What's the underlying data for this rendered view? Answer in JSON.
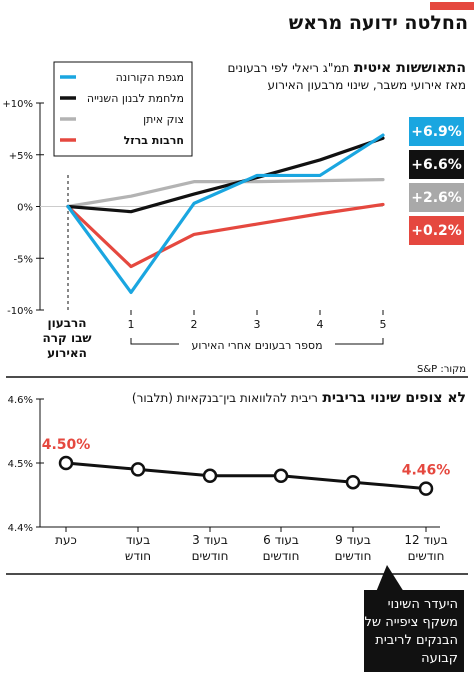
{
  "headline": "החלטה ידועה מראש",
  "source": "מקור: S&P",
  "callout": "היעדר השינוי משקף ציפייה של הבנקים לריבית קבועה",
  "chart_data": [
    {
      "type": "line",
      "title": "התאוששות איטית",
      "title_suffix": "תמ\"ג ריאלי לפי רבעונים",
      "subtitle": "מאז אירועי משבר, שינוי מרבעון האירוע",
      "x": [
        0,
        1,
        2,
        3,
        4,
        5
      ],
      "x_tick_labels": [
        "הרבעון שבו קרה האירוע",
        "1",
        "2",
        "3",
        "4",
        "5"
      ],
      "xlabel": "מספר רבעונים אחרי האירוע",
      "ylim": [
        -10,
        10
      ],
      "y_ticks": [
        "+10%",
        "+5%",
        "0%",
        "-5%",
        "-10%"
      ],
      "legend_position": "top-left",
      "series": [
        {
          "name": "מגפת הקורונה",
          "color": "#1aa6e0",
          "values": [
            0,
            -8.3,
            0.3,
            3.0,
            3.0,
            6.9
          ],
          "end_label": "+6.9%"
        },
        {
          "name": "מלחמת לבנון השנייה",
          "color": "#111111",
          "values": [
            0,
            -0.5,
            1.2,
            2.8,
            4.5,
            6.6
          ],
          "end_label": "+6.6%"
        },
        {
          "name": "צוק איתן",
          "color": "#b3b3b3",
          "values": [
            0,
            1.0,
            2.4,
            2.4,
            2.5,
            2.6
          ],
          "end_label": "+2.6%"
        },
        {
          "name": "חרבות ברזל",
          "color": "#e5483f",
          "values": [
            0,
            -5.8,
            -2.7,
            -1.7,
            -0.7,
            0.2
          ],
          "end_label": "+0.2%"
        }
      ]
    },
    {
      "type": "line",
      "title": "לא צופים שינוי בריבית",
      "title_suffix": "ריבית להלוואות בין־בנקאיות (תלבור)",
      "categories": [
        "כעת",
        "בעוד חודש",
        "בעוד 3 חודשים",
        "בעוד 6 חודשים",
        "בעוד 9 חודשים",
        "בעוד 12 חודשים"
      ],
      "values": [
        4.5,
        4.49,
        4.48,
        4.48,
        4.47,
        4.46
      ],
      "ylim": [
        4.4,
        4.6
      ],
      "y_ticks": [
        "4.6%",
        "4.5%",
        "4.4%"
      ],
      "data_labels": {
        "first": "4.50%",
        "last": "4.46%"
      },
      "color": "#111111",
      "label_color": "#e5483f"
    }
  ]
}
